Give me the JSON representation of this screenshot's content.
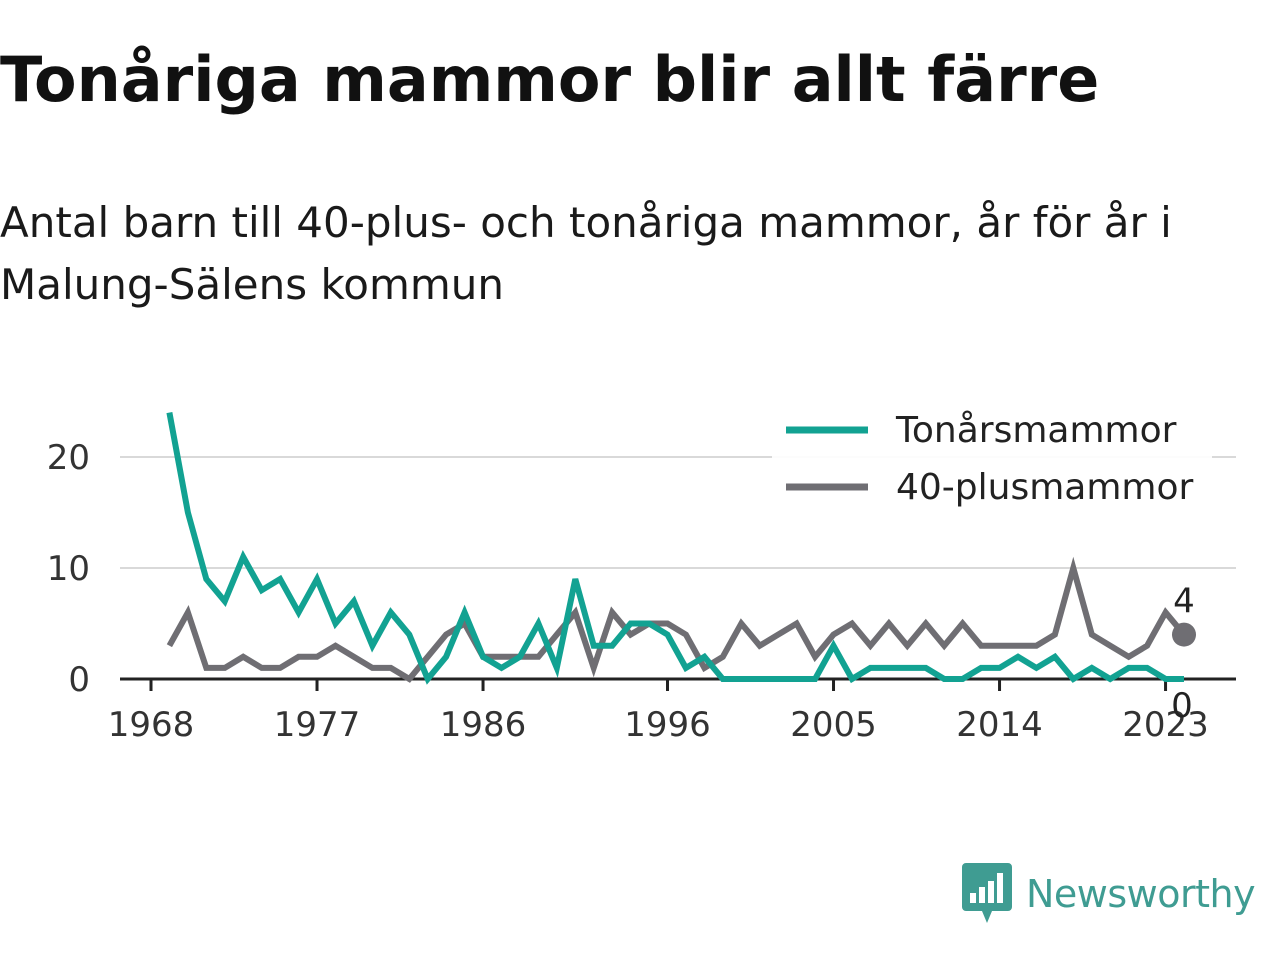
{
  "title": "Tonåriga mammor blir allt färre",
  "subtitle": "Antal barn till 40-plus- och tonåriga mammor, år för år i Malung-Sälens kommun",
  "brand": "Newsworthy",
  "colors": {
    "teen": "#12a292",
    "forty": "#6f6e73",
    "brand": "#3f9c92",
    "grid": "#d9d9d9"
  },
  "chart_data": {
    "type": "line",
    "x": [
      1969,
      1970,
      1971,
      1972,
      1973,
      1974,
      1975,
      1976,
      1977,
      1978,
      1979,
      1980,
      1981,
      1982,
      1983,
      1984,
      1985,
      1986,
      1987,
      1988,
      1989,
      1990,
      1991,
      1992,
      1993,
      1994,
      1995,
      1996,
      1997,
      1998,
      1999,
      2000,
      2001,
      2002,
      2003,
      2004,
      2005,
      2006,
      2007,
      2008,
      2009,
      2010,
      2011,
      2012,
      2013,
      2014,
      2015,
      2016,
      2017,
      2018,
      2019,
      2020,
      2021,
      2022,
      2023,
      2024
    ],
    "series": [
      {
        "name": "Tonårsmammor",
        "color": "#12a292",
        "values": [
          24,
          15,
          9,
          7,
          11,
          8,
          9,
          6,
          9,
          5,
          7,
          3,
          6,
          4,
          0,
          2,
          6,
          2,
          1,
          2,
          5,
          1,
          9,
          3,
          3,
          5,
          5,
          4,
          1,
          2,
          0,
          0,
          0,
          0,
          0,
          0,
          3,
          0,
          1,
          1,
          1,
          1,
          0,
          0,
          1,
          1,
          2,
          1,
          2,
          0,
          1,
          0,
          1,
          1,
          0,
          0
        ]
      },
      {
        "name": "40-plusmammor",
        "color": "#6f6e73",
        "values": [
          3,
          6,
          1,
          1,
          2,
          1,
          1,
          2,
          2,
          3,
          2,
          1,
          1,
          0,
          2,
          4,
          5,
          2,
          2,
          2,
          2,
          4,
          6,
          1,
          6,
          4,
          5,
          5,
          4,
          1,
          2,
          5,
          3,
          4,
          5,
          2,
          4,
          5,
          3,
          5,
          3,
          5,
          3,
          5,
          3,
          3,
          3,
          3,
          4,
          10,
          4,
          3,
          2,
          3,
          6,
          4
        ]
      }
    ],
    "x_ticks": [
      1968,
      1977,
      1986,
      1996,
      2005,
      2014,
      2023
    ],
    "y_ticks": [
      0,
      10,
      20
    ],
    "ylim": [
      0,
      25
    ],
    "xlim": [
      1968,
      2024
    ],
    "grid": "horizontal",
    "legend": "top-right",
    "end_labels": {
      "Tonårsmammor": "0",
      "40-plusmammor": "4"
    }
  }
}
